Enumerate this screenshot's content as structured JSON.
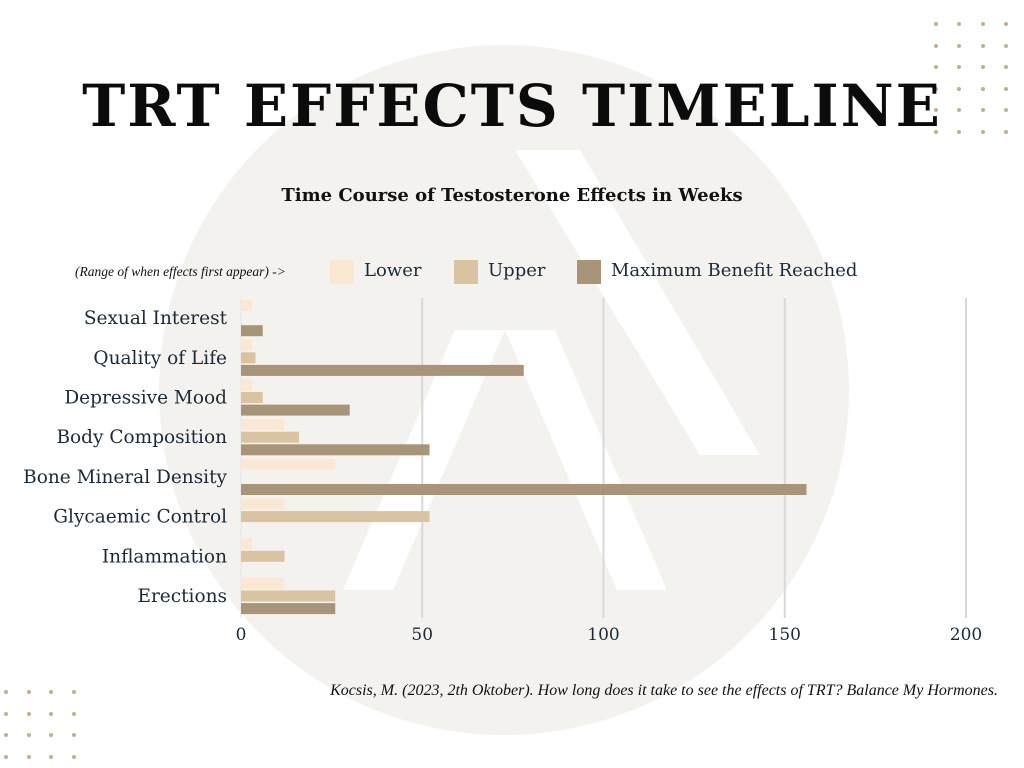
{
  "page": {
    "title": "TRT EFFECTS TIMELINE",
    "citation": "Kocsis, M. (2023, 2th Oktober). How long does it take to see the effects of TRT? Balance My Hormones."
  },
  "legend": {
    "note": "(Range of when effects first appear) ->",
    "items": [
      "Lower",
      "Upper",
      "Maximum Benefit Reached"
    ]
  },
  "colors": {
    "lower": "#fbe8d2",
    "upper": "#d9c3a0",
    "max": "#a89479",
    "grid": "#d8d8d8",
    "axis_text": "#1a2a3a",
    "background_logo": "#f4f2ef"
  },
  "chart_data": {
    "type": "bar",
    "orientation": "horizontal",
    "title": "Time Course of Testosterone Effects in Weeks",
    "categories": [
      "Sexual Interest",
      "Quality of Life",
      "Depressive Mood",
      "Body Composition",
      "Bone Mineral Density",
      "Glycaemic Control",
      "Inflammation",
      "Erections"
    ],
    "series": [
      {
        "name": "Lower",
        "values": [
          3,
          3,
          3,
          12,
          26,
          12,
          3,
          12
        ]
      },
      {
        "name": "Upper",
        "values": [
          0,
          4,
          6,
          16,
          0,
          52,
          12,
          26
        ]
      },
      {
        "name": "Maximum Benefit Reached",
        "values": [
          6,
          78,
          30,
          52,
          156,
          0,
          0,
          26
        ]
      }
    ],
    "x_ticks": [
      0,
      50,
      100,
      150,
      200
    ],
    "xlim": [
      0,
      200
    ],
    "grid": true,
    "legend_position": "top"
  }
}
